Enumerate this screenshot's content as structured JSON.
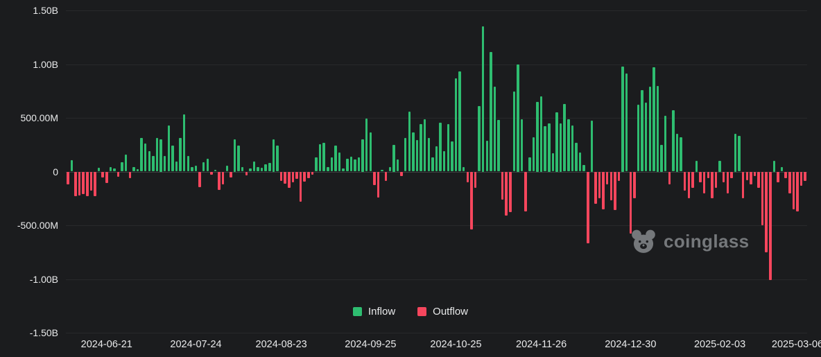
{
  "page": {
    "background": "#1b1c1e",
    "text_color": "#e9eaeb"
  },
  "watermark": {
    "text": "coinglass",
    "icon": "bear-icon"
  },
  "chart_data": {
    "type": "bar",
    "title": "",
    "description": "Daily inflow/outflow bar chart; positive bars are Inflow (green), negative bars are Outflow (red). Values in millions.",
    "grid": true,
    "legend_position": "bottom-center",
    "legend": [
      {
        "label": "Inflow",
        "color": "#2EBD70"
      },
      {
        "label": "Outflow",
        "color": "#F6465D"
      }
    ],
    "ylim": [
      -1500,
      1500
    ],
    "y_ticks": [
      {
        "label": "1.50B",
        "value": 1500
      },
      {
        "label": "1.00B",
        "value": 1000
      },
      {
        "label": "500.00M",
        "value": 500
      },
      {
        "label": "0",
        "value": 0
      },
      {
        "label": "-500.00M",
        "value": -500
      },
      {
        "label": "-1.00B",
        "value": -1000
      },
      {
        "label": "-1.50B",
        "value": -1500
      }
    ],
    "x_ticks": [
      {
        "label": "2024-06-21",
        "index": 10
      },
      {
        "label": "2024-07-24",
        "index": 33
      },
      {
        "label": "2024-08-23",
        "index": 55
      },
      {
        "label": "2024-09-25",
        "index": 78
      },
      {
        "label": "2024-10-25",
        "index": 100
      },
      {
        "label": "2024-11-26",
        "index": 122
      },
      {
        "label": "2024-12-30",
        "index": 145
      },
      {
        "label": "2025-02-03",
        "index": 168
      },
      {
        "label": "2025-03-06",
        "index": 188
      }
    ],
    "values_unit": "M",
    "values": [
      -120,
      105,
      -230,
      -225,
      -210,
      -230,
      -180,
      -230,
      35,
      -55,
      -105,
      45,
      30,
      -50,
      90,
      160,
      -60,
      45,
      20,
      310,
      260,
      190,
      145,
      310,
      300,
      145,
      430,
      245,
      95,
      310,
      530,
      145,
      45,
      55,
      -145,
      85,
      120,
      -30,
      15,
      -170,
      -120,
      55,
      -55,
      300,
      245,
      45,
      -35,
      30,
      95,
      45,
      35,
      65,
      80,
      300,
      245,
      -90,
      -110,
      -150,
      -100,
      -65,
      -280,
      -95,
      -60,
      -30,
      130,
      255,
      270,
      45,
      130,
      245,
      180,
      28,
      120,
      140,
      110,
      135,
      300,
      495,
      365,
      -125,
      -240,
      15,
      -85,
      40,
      250,
      110,
      -45,
      310,
      555,
      365,
      295,
      445,
      485,
      310,
      135,
      235,
      455,
      190,
      445,
      280,
      870,
      930,
      45,
      -100,
      -540,
      -150,
      610,
      1350,
      290,
      1110,
      790,
      480,
      -260,
      -410,
      -380,
      745,
      1000,
      490,
      -370,
      130,
      320,
      650,
      700,
      420,
      450,
      170,
      550,
      450,
      630,
      490,
      430,
      270,
      180,
      60,
      -670,
      475,
      -300,
      -250,
      -350,
      -120,
      -270,
      -360,
      -90,
      975,
      910,
      -580,
      -250,
      620,
      760,
      640,
      790,
      970,
      800,
      250,
      520,
      -120,
      570,
      350,
      320,
      -180,
      -250,
      -150,
      100,
      -100,
      -200,
      -60,
      -250,
      -150,
      100,
      -100,
      -200,
      -60,
      350,
      330,
      -250,
      -80,
      -120,
      -40,
      -150,
      -500,
      -750,
      -1010,
      100,
      -100,
      40,
      -60,
      -200,
      -350,
      -370,
      -130,
      -90
    ]
  }
}
